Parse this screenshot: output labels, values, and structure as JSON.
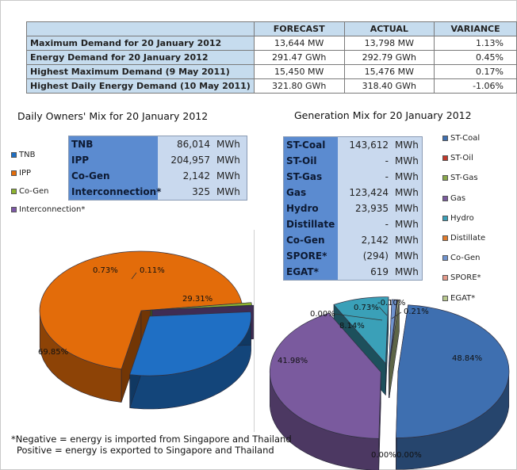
{
  "summary": {
    "headers": [
      "FORECAST",
      "ACTUAL",
      "VARIANCE"
    ],
    "rows": [
      {
        "label": "Maximum Demand for 20 January 2012",
        "forecast": "13,644  MW",
        "actual": "13,798  MW",
        "variance": "1.13%"
      },
      {
        "label": "Energy Demand for 20 January 2012",
        "forecast": "291.47  GWh",
        "actual": "292.79  GWh",
        "variance": "0.45%"
      },
      {
        "label": "Highest Maximum Demand (9 May 2011)",
        "forecast": "15,450  MW",
        "actual": "15,476  MW",
        "variance": "0.17%"
      },
      {
        "label": "Highest Daily Energy Demand (10 May 2011)",
        "forecast": "321.80  GWh",
        "actual": "318.40  GWh",
        "variance": "-1.06%"
      }
    ]
  },
  "owners": {
    "title": "Daily Owners' Mix for 20 January 2012",
    "rows": [
      {
        "name": "TNB",
        "value": "86,014",
        "unit": "MWh"
      },
      {
        "name": "IPP",
        "value": "204,957",
        "unit": "MWh"
      },
      {
        "name": "Co-Gen",
        "value": "2,142",
        "unit": "MWh"
      },
      {
        "name": "Interconnection*",
        "value": "325",
        "unit": "MWh"
      }
    ]
  },
  "generation": {
    "title": "Generation Mix for 20 January 2012",
    "rows": [
      {
        "name": "ST-Coal",
        "value": "143,612",
        "unit": "MWh"
      },
      {
        "name": "ST-Oil",
        "value": "-",
        "unit": "MWh"
      },
      {
        "name": "ST-Gas",
        "value": "-",
        "unit": "MWh"
      },
      {
        "name": "Gas",
        "value": "123,424",
        "unit": "MWh"
      },
      {
        "name": "Hydro",
        "value": "23,935",
        "unit": "MWh"
      },
      {
        "name": "Distillate",
        "value": "-",
        "unit": "MWh"
      },
      {
        "name": "Co-Gen",
        "value": "2,142",
        "unit": "MWh"
      },
      {
        "name": "SPORE*",
        "value": "(294)",
        "unit": "MWh"
      },
      {
        "name": "EGAT*",
        "value": "619",
        "unit": "MWh"
      }
    ]
  },
  "note": {
    "line1": "*Negative = energy is imported from Singapore and Thailand",
    "line2": "Positive = energy is exported to Singapore and Thailand"
  },
  "chart_data": [
    {
      "type": "pie",
      "title": "Daily Owners' Mix for 20 January 2012",
      "legend_position": "left",
      "categories": [
        "TNB",
        "IPP",
        "Co-Gen",
        "Interconnection*"
      ],
      "values": [
        29.31,
        69.85,
        0.73,
        0.11
      ],
      "labels": [
        "29.31%",
        "69.85%",
        "0.73%",
        "0.11%"
      ],
      "colors": [
        "#1f6fc4",
        "#e36c0a",
        "#8db32f",
        "#7e58a8"
      ]
    },
    {
      "type": "pie",
      "title": "Generation Mix for 20 January 2012",
      "legend_position": "right",
      "categories": [
        "ST-Coal",
        "ST-Oil",
        "ST-Gas",
        "Gas",
        "Hydro",
        "Distillate",
        "Co-Gen",
        "SPORE*",
        "EGAT*"
      ],
      "values": [
        48.84,
        0.0,
        0.0,
        41.98,
        8.14,
        0.0,
        0.73,
        -0.1,
        0.21
      ],
      "labels": [
        "48.84%",
        "0.00%",
        "0.00%",
        "41.98%",
        "8.14%",
        "0.00%",
        "0.73%",
        "-0.10%",
        "0.21%"
      ],
      "colors": [
        "#3e6fb0",
        "#c0392b",
        "#8aa84a",
        "#7a5a9e",
        "#3aa0b8",
        "#e07a2c",
        "#6f93cf",
        "#e59a8a",
        "#b9c98e"
      ]
    }
  ]
}
